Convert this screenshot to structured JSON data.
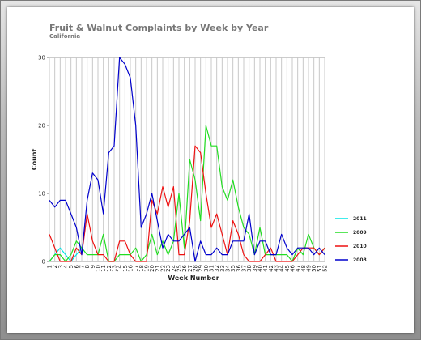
{
  "chart_data": {
    "type": "line",
    "title": "Fruit & Walnut Complaints by Week by Year",
    "subtitle": "California",
    "xlabel": "Week Number",
    "ylabel": "Count",
    "x": [
      1,
      2,
      3,
      4,
      5,
      6,
      7,
      8,
      9,
      10,
      11,
      12,
      13,
      14,
      15,
      16,
      17,
      18,
      19,
      20,
      21,
      22,
      23,
      24,
      25,
      26,
      27,
      28,
      29,
      30,
      31,
      32,
      33,
      34,
      35,
      36,
      37,
      38,
      39,
      40,
      41,
      42,
      43,
      44,
      45,
      46,
      47,
      48,
      49,
      50,
      51,
      52
    ],
    "ylim": [
      0,
      30
    ],
    "yticks": [
      0,
      10,
      20,
      30
    ],
    "grid": "vertical",
    "legend_position": "right",
    "series": [
      {
        "name": "2011",
        "color": "#00e5e5",
        "values": [
          0,
          1,
          2,
          1,
          0,
          1,
          2,
          null,
          null,
          null,
          null,
          null,
          null,
          null,
          null,
          null,
          null,
          null,
          null,
          null,
          null,
          null,
          null,
          null,
          null,
          null,
          null,
          null,
          null,
          null,
          null,
          null,
          null,
          null,
          null,
          null,
          null,
          null,
          null,
          null,
          null,
          null,
          null,
          null,
          null,
          null,
          null,
          null,
          null,
          null,
          null,
          null
        ]
      },
      {
        "name": "2009",
        "color": "#22dd22",
        "values": [
          0,
          1,
          1,
          0,
          1,
          3,
          2,
          1,
          1,
          1,
          4,
          0,
          0,
          1,
          1,
          1,
          2,
          0,
          1,
          4,
          1,
          3,
          1,
          3,
          10,
          2,
          15,
          12,
          6,
          20,
          17,
          17,
          11,
          9,
          12,
          8,
          5,
          4,
          1,
          5,
          1,
          1,
          1,
          1,
          1,
          0,
          2,
          1,
          4,
          2,
          1,
          2
        ]
      },
      {
        "name": "2010",
        "color": "#ee1111",
        "values": [
          4,
          2,
          0,
          0,
          0,
          2,
          1,
          7,
          3,
          1,
          1,
          0,
          0,
          3,
          3,
          1,
          0,
          0,
          0,
          9,
          7,
          11,
          8,
          11,
          1,
          1,
          6,
          17,
          16,
          10,
          5,
          7,
          4,
          1,
          6,
          4,
          1,
          0,
          0,
          0,
          1,
          2,
          0,
          0,
          0,
          0,
          1,
          2,
          2,
          2,
          1,
          2
        ]
      },
      {
        "name": "2008",
        "color": "#0000cc",
        "values": [
          9,
          8,
          9,
          9,
          7,
          5,
          1,
          9,
          13,
          12,
          7,
          16,
          17,
          30,
          29,
          27,
          20,
          5,
          7,
          10,
          6,
          2,
          4,
          3,
          3,
          4,
          5,
          0,
          3,
          1,
          1,
          2,
          1,
          1,
          3,
          3,
          3,
          7,
          1,
          3,
          3,
          1,
          1,
          4,
          2,
          1,
          2,
          2,
          2,
          1,
          2,
          1
        ]
      }
    ]
  }
}
